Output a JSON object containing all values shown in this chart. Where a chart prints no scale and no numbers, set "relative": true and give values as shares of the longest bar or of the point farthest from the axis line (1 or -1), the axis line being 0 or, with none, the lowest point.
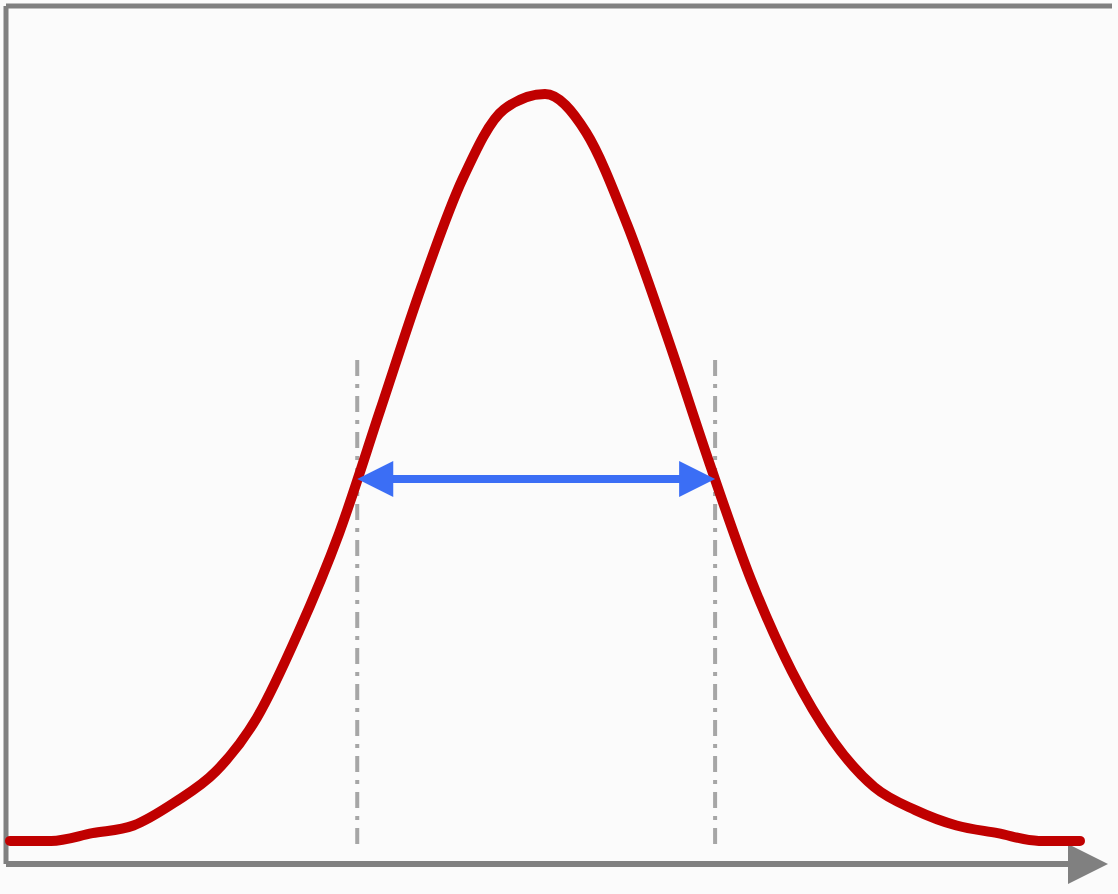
{
  "chart_data": {
    "type": "line",
    "relative": true,
    "marker": "none",
    "line_style": "solid",
    "categories": [
      null,
      null,
      null,
      null,
      null,
      null,
      null,
      null,
      null,
      null,
      null,
      null,
      null,
      null,
      null,
      null,
      null,
      null,
      null,
      null,
      null,
      null,
      null,
      null,
      null,
      null,
      null
    ],
    "series": [
      {
        "color": "#c00000",
        "values": [
          0.03,
          0.03,
          0.04,
          0.05,
          0.08,
          0.12,
          0.19,
          0.3,
          0.43,
          0.59,
          0.75,
          0.89,
          0.98,
          1.0,
          0.95,
          0.83,
          0.68,
          0.52,
          0.37,
          0.25,
          0.16,
          0.1,
          0.07,
          0.05,
          0.04,
          0.03,
          0.03
        ]
      }
    ]
  }
}
